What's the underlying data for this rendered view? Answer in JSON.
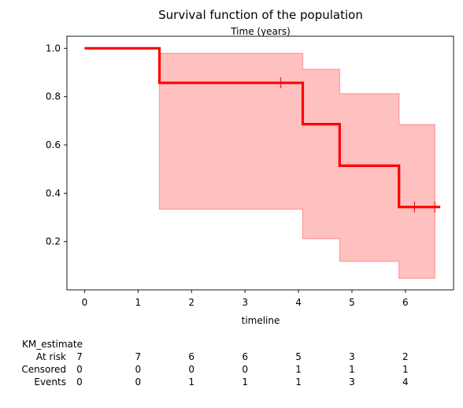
{
  "chart_data": {
    "type": "line",
    "title": "Survival function of the population",
    "subtitle": "Time (years)",
    "xlabel": "timeline",
    "ylabel": "",
    "xlim": [
      -0.33,
      6.9
    ],
    "ylim": [
      0.0,
      1.05
    ],
    "x_ticks": [
      "0",
      "1",
      "2",
      "3",
      "4",
      "5",
      "6"
    ],
    "y_ticks": [
      "0.2",
      "0.4",
      "0.6",
      "0.8",
      "1.0"
    ],
    "grid": false,
    "line_color": "#ff0000",
    "band_color": "#ff9999",
    "series": [
      {
        "name": "KM_estimate",
        "step": [
          {
            "x": 0.0,
            "y": 1.0
          },
          {
            "x": 1.4,
            "y": 0.857
          },
          {
            "x": 4.08,
            "y": 0.686
          },
          {
            "x": 4.77,
            "y": 0.514
          },
          {
            "x": 5.88,
            "y": 0.343
          },
          {
            "x": 6.65,
            "y": 0.343
          }
        ],
        "ci_band": [
          {
            "x0": 1.4,
            "x1": 4.08,
            "lower": 0.334,
            "upper": 0.979
          },
          {
            "x0": 4.08,
            "x1": 4.77,
            "lower": 0.212,
            "upper": 0.913
          },
          {
            "x0": 4.77,
            "x1": 5.88,
            "lower": 0.118,
            "upper": 0.812
          },
          {
            "x0": 5.88,
            "x1": 6.55,
            "lower": 0.048,
            "upper": 0.684
          }
        ],
        "censored": [
          {
            "x": 3.67,
            "y": 0.857
          },
          {
            "x": 6.17,
            "y": 0.343
          },
          {
            "x": 6.55,
            "y": 0.343
          }
        ]
      }
    ]
  },
  "risk_table": {
    "title": "KM_estimate",
    "rows": [
      {
        "label": "At risk",
        "values": [
          "7",
          "7",
          "6",
          "6",
          "5",
          "3",
          "2"
        ]
      },
      {
        "label": "Censored",
        "values": [
          "0",
          "0",
          "0",
          "0",
          "1",
          "1",
          "1"
        ]
      },
      {
        "label": "Events",
        "values": [
          "0",
          "0",
          "1",
          "1",
          "1",
          "3",
          "4"
        ]
      }
    ]
  }
}
